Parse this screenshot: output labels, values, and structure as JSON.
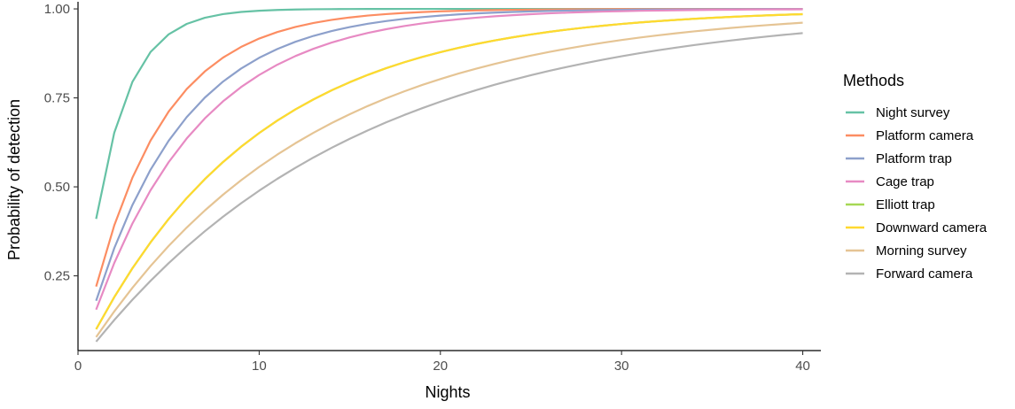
{
  "chart_data": {
    "type": "line",
    "title": "",
    "xlabel": "Nights",
    "ylabel": "Probability of detection",
    "xlim": [
      0,
      41
    ],
    "ylim": [
      0.04,
      1.02
    ],
    "x_ticks": [
      0,
      10,
      20,
      30,
      40
    ],
    "x_tick_labels": [
      "0",
      "10",
      "20",
      "30",
      "40"
    ],
    "y_ticks": [
      0.25,
      0.5,
      0.75,
      1.0
    ],
    "y_tick_labels": [
      "0.25",
      "0.50",
      "0.75",
      "1.00"
    ],
    "grid": false,
    "legend": {
      "title": "Methods",
      "placement": "right"
    },
    "x_range": [
      1,
      40
    ],
    "series": [
      {
        "name": "Night survey",
        "color": "#66c2a5",
        "p1": 0.41
      },
      {
        "name": "Platform camera",
        "color": "#fc8d62",
        "p1": 0.22
      },
      {
        "name": "Platform trap",
        "color": "#8da0cb",
        "p1": 0.18
      },
      {
        "name": "Cage trap",
        "color": "#e78ac3",
        "p1": 0.155
      },
      {
        "name": "Elliott trap",
        "color": "#a6d854",
        "p1": 0.1
      },
      {
        "name": "Downward camera",
        "color": "#ffd92f",
        "p1": 0.1
      },
      {
        "name": "Morning survey",
        "color": "#e5c494",
        "p1": 0.078
      },
      {
        "name": "Forward camera",
        "color": "#b3b3b3",
        "p1": 0.065
      }
    ]
  }
}
